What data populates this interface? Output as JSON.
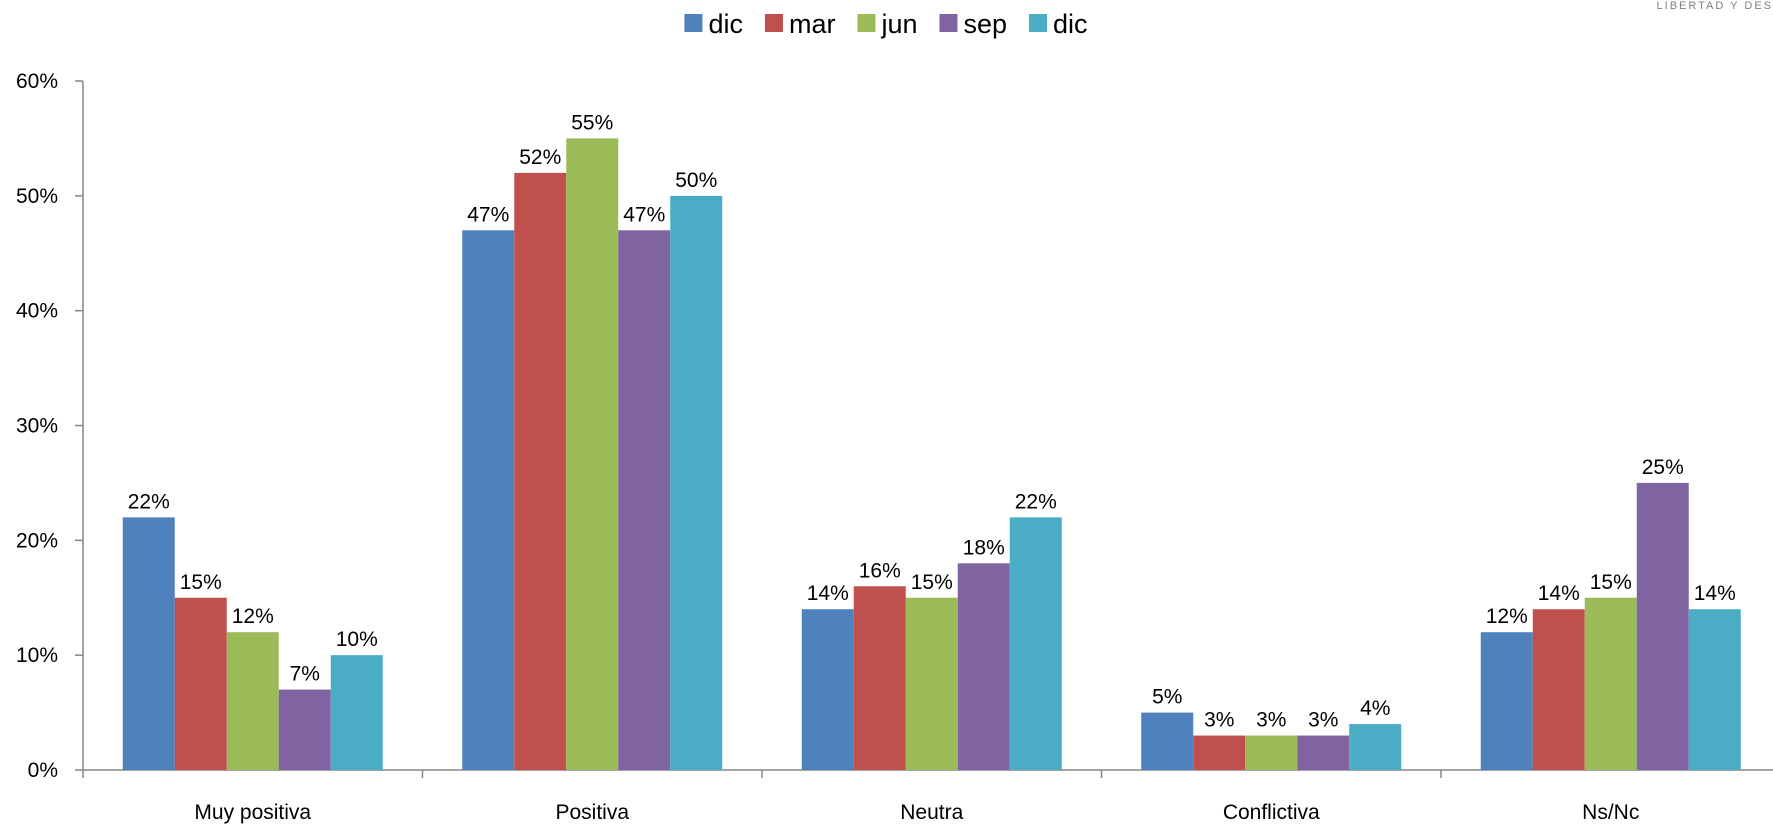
{
  "corner_text": "LIBERTAD Y DES",
  "chart_data": {
    "type": "bar",
    "categories": [
      "Muy positiva",
      "Positiva",
      "Neutra",
      "Conflictiva",
      "Ns/Nc"
    ],
    "series": [
      {
        "name": "dic",
        "color": "#4F81BD",
        "values": [
          22,
          47,
          14,
          5,
          12
        ],
        "labels": [
          "22%",
          "47%",
          "14%",
          "5%",
          "12%"
        ]
      },
      {
        "name": "mar",
        "color": "#C0504D",
        "values": [
          15,
          52,
          16,
          3,
          14
        ],
        "labels": [
          "15%",
          "52%",
          "16%",
          "3%",
          "14%"
        ]
      },
      {
        "name": "jun",
        "color": "#9BBB59",
        "values": [
          12,
          55,
          15,
          3,
          15
        ],
        "labels": [
          "12%",
          "55%",
          "15%",
          "3%",
          "15%"
        ]
      },
      {
        "name": "sep",
        "color": "#8064A2",
        "values": [
          7,
          47,
          18,
          3,
          25
        ],
        "labels": [
          "7%",
          "47%",
          "18%",
          "3%",
          "25%"
        ]
      },
      {
        "name": "dic",
        "color": "#4BACC6",
        "values": [
          10,
          50,
          22,
          4,
          14
        ],
        "labels": [
          "10%",
          "50%",
          "22%",
          "4%",
          "14%"
        ]
      }
    ],
    "ylim": [
      0,
      60
    ],
    "yticks": [
      0,
      10,
      20,
      30,
      40,
      50,
      60
    ],
    "ytick_labels": [
      "0%",
      "10%",
      "20%",
      "30%",
      "40%",
      "50%",
      "60%"
    ],
    "legend": "top-center",
    "grid": false,
    "title": "",
    "xlabel": "",
    "ylabel": ""
  }
}
